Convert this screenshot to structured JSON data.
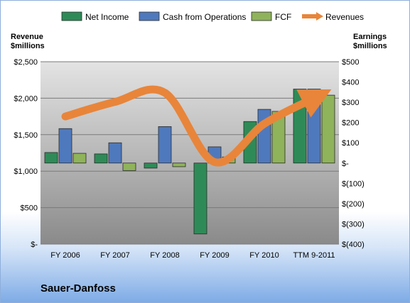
{
  "chart_data": {
    "type": "bar",
    "categories": [
      "FY 2006",
      "FY 2007",
      "FY 2008",
      "FY 2009",
      "FY 2010",
      "TTM 9-2011"
    ],
    "left_axis": {
      "title": "Revenue\n$millions",
      "ylim": [
        0,
        2500
      ],
      "ticks": [
        0,
        500,
        1000,
        1500,
        2000,
        2500
      ],
      "tick_labels": [
        "$-",
        "$500",
        "$1,000",
        "$1,500",
        "$2,000",
        "$2,500"
      ]
    },
    "right_axis": {
      "title": "Earnings\n$millions",
      "ylim": [
        -400,
        500
      ],
      "ticks": [
        -400,
        -300,
        -200,
        -100,
        0,
        100,
        200,
        300,
        400,
        500
      ],
      "tick_labels": [
        "$(400)",
        "$(300)",
        "$(200)",
        "$(100)",
        "$-",
        "$100",
        "$200",
        "$300",
        "$400",
        "$500"
      ]
    },
    "series": [
      {
        "name": "Net Income",
        "axis": "right",
        "kind": "bar",
        "color": "#2e8b57",
        "values": [
          52,
          45,
          -25,
          -350,
          205,
          365
        ]
      },
      {
        "name": "Cash from Operations",
        "axis": "right",
        "kind": "bar",
        "color": "#4f79bd",
        "values": [
          170,
          100,
          180,
          80,
          265,
          365
        ]
      },
      {
        "name": "FCF",
        "axis": "right",
        "kind": "bar",
        "color": "#8fb35a",
        "values": [
          48,
          -37,
          -18,
          30,
          255,
          335
        ]
      },
      {
        "name": "Revenues",
        "axis": "left",
        "kind": "line",
        "color": "#e8853a",
        "values": [
          1750,
          1950,
          2075,
          1125,
          1650,
          2000
        ]
      }
    ],
    "legend_position": "top",
    "grid": true
  },
  "company": "Sauer-Danfoss"
}
